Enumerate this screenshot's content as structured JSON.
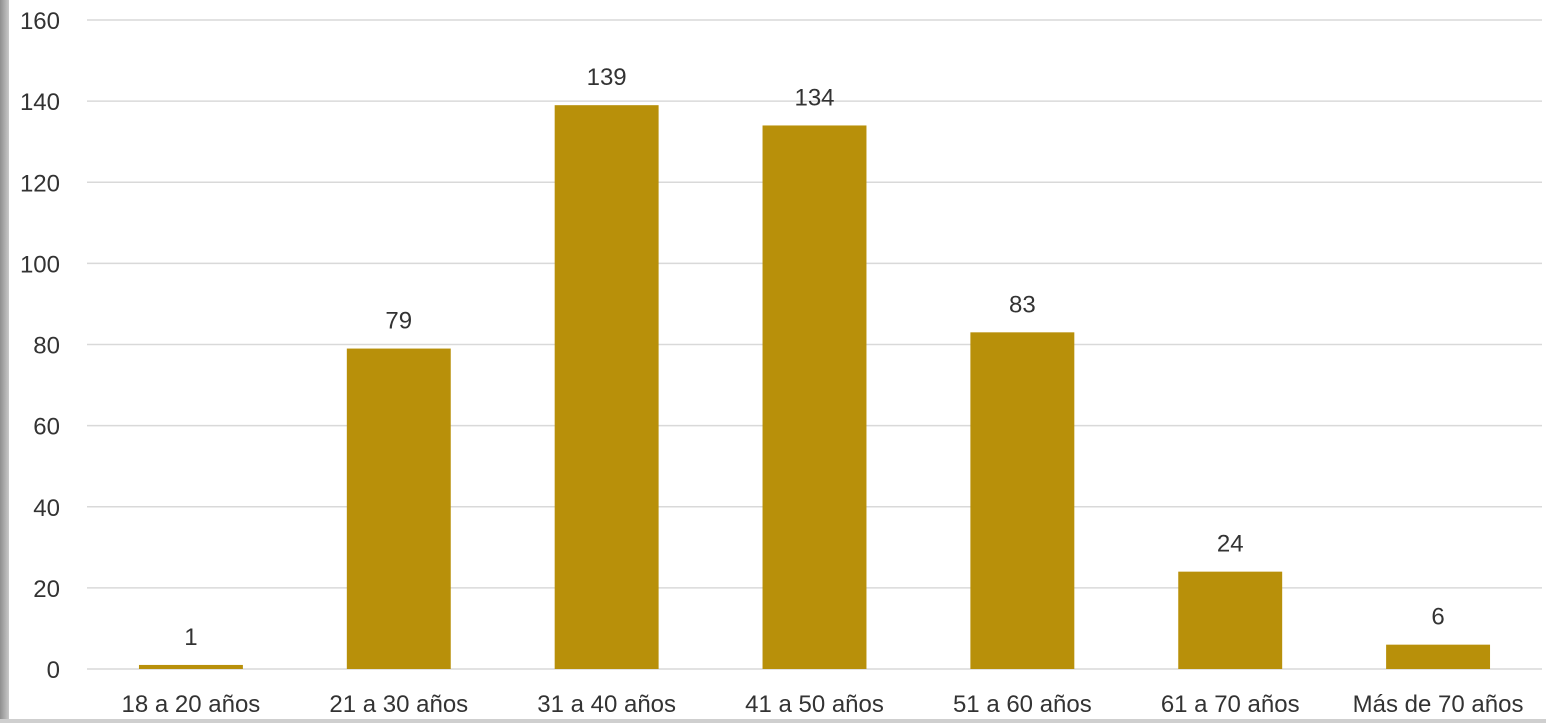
{
  "chart_data": {
    "type": "bar",
    "title": "",
    "xlabel": "",
    "ylabel": "",
    "categories": [
      "18 a 20 años",
      "21 a 30 años",
      "31 a 40 años",
      "41 a 50 años",
      "51 a 60 años",
      "61 a 70 años",
      "Más de 70 años"
    ],
    "values": [
      1,
      79,
      139,
      134,
      83,
      24,
      6
    ],
    "ylim": [
      0,
      160
    ],
    "yticks": [
      0,
      20,
      40,
      60,
      80,
      100,
      120,
      140,
      160
    ],
    "grid": true,
    "legend": "none",
    "data_labels": true,
    "colors": {
      "bar": "#B8900A",
      "grid": "#d9d9d9",
      "text": "#333333"
    }
  }
}
